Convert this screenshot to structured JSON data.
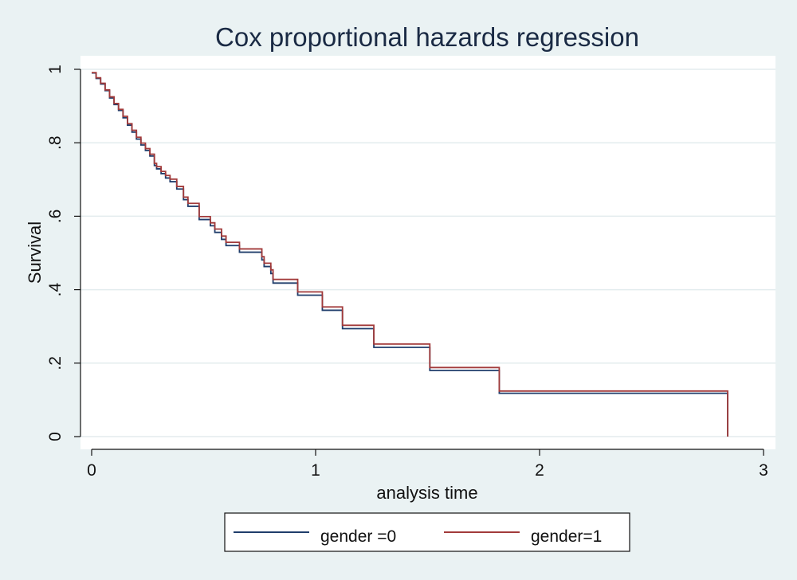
{
  "chart_data": {
    "type": "line",
    "step": true,
    "title": "Cox proportional hazards regression",
    "xlabel": "analysis time",
    "ylabel": "Survival",
    "xlim": [
      0,
      3
    ],
    "ylim": [
      0,
      1
    ],
    "x_ticks": [
      0,
      1,
      2,
      3
    ],
    "x_tick_labels": [
      "0",
      "1",
      "2",
      "3"
    ],
    "y_ticks": [
      0,
      0.2,
      0.4,
      0.6,
      0.8,
      1
    ],
    "y_tick_labels": [
      "0",
      ".2",
      ".4",
      ".6",
      ".8",
      "1"
    ],
    "grid": "horizontal",
    "legend_position": "bottom",
    "colors": {
      "background": "#eaf2f3",
      "plot_area": "#ffffff",
      "gridline": "#e3ecee",
      "series_0": "#1f3d6b",
      "series_1": "#a23a3a"
    },
    "x": [
      0,
      0.02,
      0.04,
      0.06,
      0.08,
      0.1,
      0.12,
      0.14,
      0.16,
      0.18,
      0.2,
      0.22,
      0.24,
      0.26,
      0.28,
      0.29,
      0.31,
      0.33,
      0.35,
      0.38,
      0.41,
      0.43,
      0.48,
      0.53,
      0.55,
      0.58,
      0.6,
      0.66,
      0.76,
      0.77,
      0.8,
      0.81,
      0.92,
      1.03,
      1.12,
      1.26,
      1.51,
      1.82,
      2.84
    ],
    "series": [
      {
        "name": "gender =0",
        "values": [
          0.99,
          0.975,
          0.96,
          0.942,
          0.922,
          0.904,
          0.888,
          0.868,
          0.848,
          0.829,
          0.81,
          0.794,
          0.779,
          0.764,
          0.738,
          0.729,
          0.716,
          0.704,
          0.694,
          0.674,
          0.645,
          0.627,
          0.591,
          0.574,
          0.556,
          0.537,
          0.52,
          0.502,
          0.481,
          0.463,
          0.444,
          0.418,
          0.385,
          0.344,
          0.294,
          0.243,
          0.18,
          0.118,
          0
        ]
      },
      {
        "name": "gender=1",
        "values": [
          0.991,
          0.977,
          0.962,
          0.944,
          0.925,
          0.907,
          0.891,
          0.872,
          0.852,
          0.834,
          0.815,
          0.799,
          0.784,
          0.769,
          0.744,
          0.735,
          0.722,
          0.711,
          0.701,
          0.681,
          0.652,
          0.635,
          0.599,
          0.582,
          0.565,
          0.546,
          0.529,
          0.511,
          0.49,
          0.472,
          0.454,
          0.428,
          0.394,
          0.353,
          0.303,
          0.252,
          0.188,
          0.124,
          0
        ]
      }
    ]
  }
}
